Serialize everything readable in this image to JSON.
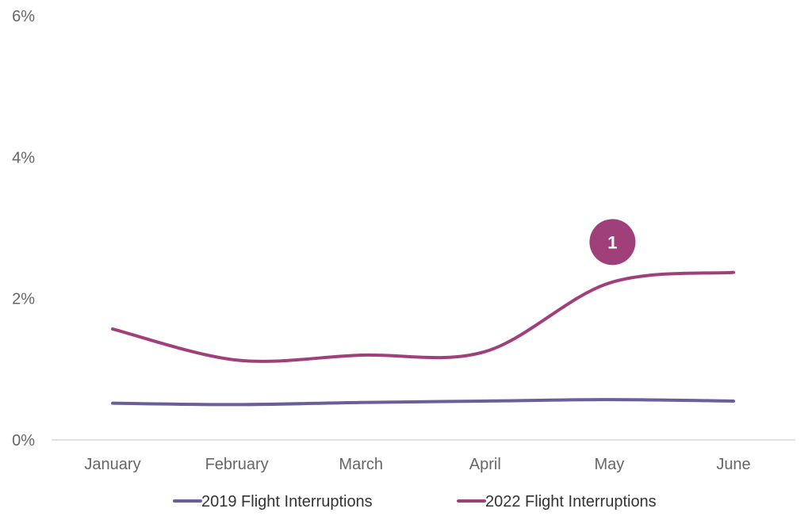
{
  "chart_data": {
    "type": "line",
    "categories": [
      "January",
      "February",
      "March",
      "April",
      "May",
      "June"
    ],
    "y_ticks": [
      "0%",
      "2%",
      "4%",
      "6%"
    ],
    "ylim": [
      0,
      6
    ],
    "grid": false,
    "legend_position": "bottom",
    "series": [
      {
        "name": "2019 Flight Interruptions",
        "values": [
          0.52,
          0.5,
          0.53,
          0.55,
          0.57,
          0.55
        ],
        "color": "#6b5e9a"
      },
      {
        "name": "2022 Flight Interruptions",
        "values": [
          1.57,
          1.13,
          1.2,
          1.25,
          2.22,
          2.37
        ],
        "color": "#a0407a"
      }
    ],
    "annotations": [
      {
        "text": "1",
        "x": "May",
        "y": 2.8,
        "color": "#a0407a"
      }
    ]
  }
}
